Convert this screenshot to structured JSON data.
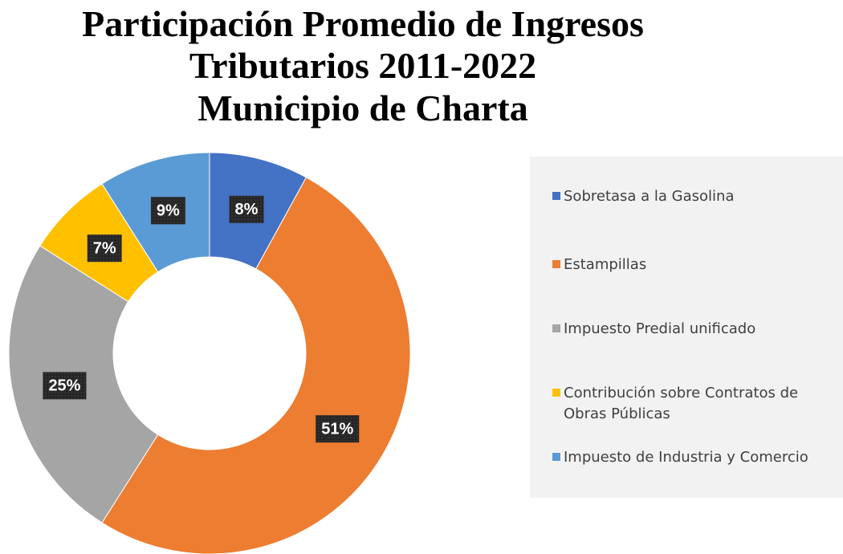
{
  "chart_data": {
    "type": "donut",
    "title": [
      "Participación Promedio de Ingresos",
      "Tributarios 2011-2022",
      "Municipio de Charta"
    ],
    "categories": [
      "Sobretasa a la Gasolina",
      "Estampillas",
      "Impuesto Predial unificado",
      "Contribución sobre Contratos de Obras Públicas",
      "Impuesto de Industria y Comercio"
    ],
    "values": [
      8,
      51,
      25,
      7,
      9
    ],
    "value_labels": [
      "8%",
      "51%",
      "25%",
      "7%",
      "9%"
    ],
    "colors": [
      "#4472c4",
      "#ed7d31",
      "#a5a5a5",
      "#ffc000",
      "#5b9bd5"
    ],
    "legend": "right"
  }
}
